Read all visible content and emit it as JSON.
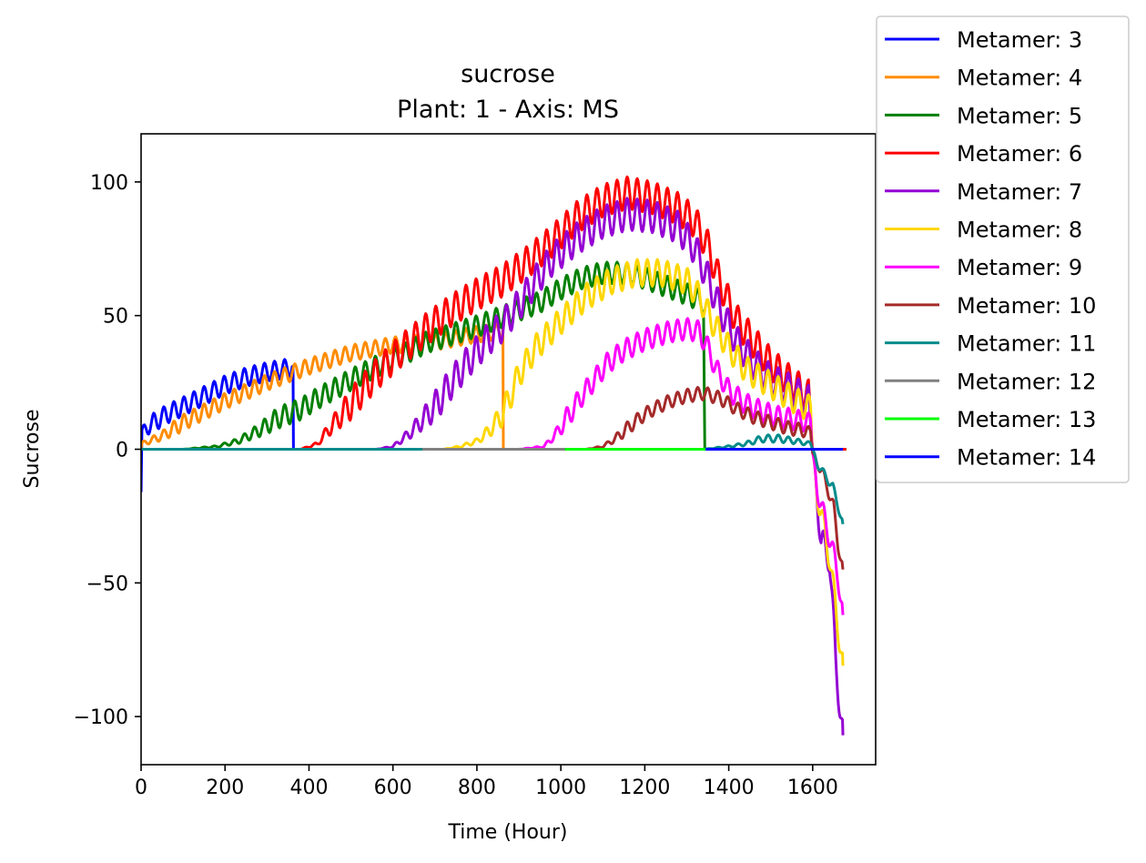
{
  "chart_data": {
    "type": "line",
    "title": "sucrose",
    "subtitle": "Plant: 1 - Axis: MS",
    "xlabel": "Time (Hour)",
    "ylabel": "Sucrose",
    "xlim": [
      0,
      1750
    ],
    "ylim": [
      -118,
      118
    ],
    "xticks": [
      0,
      200,
      400,
      600,
      800,
      1000,
      1200,
      1400,
      1600
    ],
    "yticks": [
      100,
      50,
      0,
      -50,
      -100
    ],
    "xtick_labels": [
      "0",
      "200",
      "400",
      "600",
      "800",
      "1000",
      "1200",
      "1400",
      "1600"
    ],
    "ytick_labels": [
      "100",
      "50",
      "0",
      "−50",
      "−100"
    ],
    "grid": false,
    "legend_placement": "outside-top-right",
    "series": [
      {
        "name": "Metamer: 3",
        "color": "#0000ff",
        "period": 24,
        "amp": 3.5,
        "points": [
          [
            0,
            -16
          ],
          [
            2,
            6
          ],
          [
            20,
            9
          ],
          [
            60,
            13
          ],
          [
            100,
            16
          ],
          [
            150,
            20
          ],
          [
            200,
            24
          ],
          [
            250,
            27
          ],
          [
            300,
            29
          ],
          [
            340,
            30
          ],
          [
            362,
            31
          ],
          [
            363,
            0
          ],
          [
            1680,
            0
          ]
        ]
      },
      {
        "name": "Metamer: 4",
        "color": "#ff8c00",
        "period": 24,
        "amp": 3,
        "points": [
          [
            0,
            0
          ],
          [
            2,
            2
          ],
          [
            50,
            5
          ],
          [
            100,
            10
          ],
          [
            200,
            18
          ],
          [
            300,
            25
          ],
          [
            400,
            31
          ],
          [
            500,
            36
          ],
          [
            600,
            39
          ],
          [
            700,
            40
          ],
          [
            800,
            43
          ],
          [
            850,
            44
          ],
          [
            862,
            45
          ],
          [
            863,
            0
          ],
          [
            1680,
            0
          ]
        ]
      },
      {
        "name": "Metamer: 5",
        "color": "#008000",
        "period": 24,
        "amp": 4,
        "points": [
          [
            0,
            0
          ],
          [
            100,
            0
          ],
          [
            180,
            1
          ],
          [
            230,
            3
          ],
          [
            280,
            7
          ],
          [
            330,
            12
          ],
          [
            380,
            15
          ],
          [
            420,
            19
          ],
          [
            500,
            26
          ],
          [
            560,
            31
          ],
          [
            620,
            35
          ],
          [
            680,
            40
          ],
          [
            740,
            43
          ],
          [
            800,
            46
          ],
          [
            850,
            49
          ],
          [
            900,
            52
          ],
          [
            950,
            55
          ],
          [
            1000,
            60
          ],
          [
            1050,
            64
          ],
          [
            1100,
            66
          ],
          [
            1150,
            66
          ],
          [
            1200,
            64
          ],
          [
            1250,
            61
          ],
          [
            1300,
            58
          ],
          [
            1340,
            55
          ],
          [
            1343,
            0
          ],
          [
            1680,
            0
          ]
        ]
      },
      {
        "name": "Metamer: 6",
        "color": "#ff0000",
        "period": 24,
        "amp": 6,
        "points": [
          [
            0,
            0
          ],
          [
            330,
            0
          ],
          [
            380,
            0
          ],
          [
            420,
            2
          ],
          [
            450,
            8
          ],
          [
            500,
            17
          ],
          [
            560,
            28
          ],
          [
            620,
            37
          ],
          [
            680,
            45
          ],
          [
            740,
            52
          ],
          [
            800,
            58
          ],
          [
            860,
            63
          ],
          [
            920,
            70
          ],
          [
            980,
            78
          ],
          [
            1040,
            87
          ],
          [
            1100,
            93
          ],
          [
            1160,
            96
          ],
          [
            1220,
            94
          ],
          [
            1280,
            90
          ],
          [
            1320,
            85
          ],
          [
            1350,
            76
          ],
          [
            1380,
            62
          ],
          [
            1420,
            48
          ],
          [
            1460,
            40
          ],
          [
            1500,
            32
          ],
          [
            1550,
            25
          ],
          [
            1590,
            20
          ],
          [
            1600,
            0
          ],
          [
            1680,
            0
          ]
        ]
      },
      {
        "name": "Metamer: 7",
        "color": "#9400d3",
        "period": 24,
        "amp": 6,
        "points": [
          [
            0,
            0
          ],
          [
            560,
            0
          ],
          [
            600,
            1
          ],
          [
            640,
            6
          ],
          [
            670,
            11
          ],
          [
            700,
            16
          ],
          [
            740,
            25
          ],
          [
            780,
            33
          ],
          [
            820,
            40
          ],
          [
            860,
            46
          ],
          [
            900,
            54
          ],
          [
            940,
            63
          ],
          [
            980,
            71
          ],
          [
            1040,
            79
          ],
          [
            1100,
            85
          ],
          [
            1160,
            88
          ],
          [
            1220,
            87
          ],
          [
            1280,
            83
          ],
          [
            1320,
            75
          ],
          [
            1350,
            64
          ],
          [
            1380,
            52
          ],
          [
            1420,
            40
          ],
          [
            1460,
            32
          ],
          [
            1500,
            26
          ],
          [
            1550,
            22
          ],
          [
            1590,
            18
          ],
          [
            1600,
            -2
          ],
          [
            1610,
            -15
          ],
          [
            1620,
            -35
          ],
          [
            1640,
            -40
          ],
          [
            1655,
            -80
          ],
          [
            1672,
            -107
          ]
        ]
      },
      {
        "name": "Metamer: 8",
        "color": "#ffd700",
        "period": 24,
        "amp": 5,
        "points": [
          [
            0,
            0
          ],
          [
            720,
            0
          ],
          [
            760,
            1
          ],
          [
            800,
            3
          ],
          [
            830,
            7
          ],
          [
            860,
            13
          ],
          [
            880,
            20
          ],
          [
            900,
            28
          ],
          [
            940,
            38
          ],
          [
            1000,
            48
          ],
          [
            1060,
            57
          ],
          [
            1120,
            63
          ],
          [
            1180,
            66
          ],
          [
            1240,
            66
          ],
          [
            1300,
            63
          ],
          [
            1330,
            57
          ],
          [
            1360,
            48
          ],
          [
            1400,
            38
          ],
          [
            1440,
            30
          ],
          [
            1480,
            26
          ],
          [
            1520,
            22
          ],
          [
            1560,
            18
          ],
          [
            1595,
            15
          ],
          [
            1600,
            -2
          ],
          [
            1610,
            -15
          ],
          [
            1625,
            -28
          ],
          [
            1640,
            -40
          ],
          [
            1655,
            -60
          ],
          [
            1672,
            -81
          ]
        ]
      },
      {
        "name": "Metamer: 9",
        "color": "#ff00ff",
        "period": 24,
        "amp": 4,
        "points": [
          [
            0,
            0
          ],
          [
            900,
            0
          ],
          [
            960,
            1
          ],
          [
            990,
            6
          ],
          [
            1020,
            13
          ],
          [
            1050,
            20
          ],
          [
            1080,
            26
          ],
          [
            1110,
            32
          ],
          [
            1150,
            37
          ],
          [
            1200,
            41
          ],
          [
            1260,
            44
          ],
          [
            1300,
            45
          ],
          [
            1330,
            44
          ],
          [
            1350,
            38
          ],
          [
            1370,
            30
          ],
          [
            1400,
            22
          ],
          [
            1440,
            17
          ],
          [
            1480,
            14
          ],
          [
            1520,
            12
          ],
          [
            1560,
            11
          ],
          [
            1595,
            10
          ],
          [
            1600,
            -2
          ],
          [
            1610,
            -14
          ],
          [
            1625,
            -24
          ],
          [
            1645,
            -36
          ],
          [
            1660,
            -47
          ],
          [
            1672,
            -62
          ]
        ]
      },
      {
        "name": "Metamer: 10",
        "color": "#a52a2a",
        "period": 24,
        "amp": 2.5,
        "points": [
          [
            0,
            0
          ],
          [
            1060,
            0
          ],
          [
            1100,
            1
          ],
          [
            1130,
            4
          ],
          [
            1160,
            8
          ],
          [
            1190,
            12
          ],
          [
            1220,
            15
          ],
          [
            1260,
            18
          ],
          [
            1300,
            20
          ],
          [
            1340,
            21
          ],
          [
            1380,
            19
          ],
          [
            1420,
            15
          ],
          [
            1460,
            12
          ],
          [
            1500,
            10
          ],
          [
            1540,
            8
          ],
          [
            1580,
            7
          ],
          [
            1595,
            6
          ],
          [
            1600,
            -2
          ],
          [
            1615,
            -6
          ],
          [
            1635,
            -14
          ],
          [
            1650,
            -22
          ],
          [
            1660,
            -35
          ],
          [
            1672,
            -45
          ]
        ]
      },
      {
        "name": "Metamer: 11",
        "color": "#008b8b",
        "period": 24,
        "amp": 1.5,
        "points": [
          [
            0,
            0
          ],
          [
            1340,
            0
          ],
          [
            1400,
            1
          ],
          [
            1440,
            2
          ],
          [
            1480,
            4
          ],
          [
            1520,
            4
          ],
          [
            1560,
            3
          ],
          [
            1595,
            2
          ],
          [
            1600,
            0
          ],
          [
            1610,
            -5
          ],
          [
            1630,
            -10
          ],
          [
            1648,
            -14
          ],
          [
            1660,
            -21
          ],
          [
            1672,
            -28
          ]
        ]
      },
      {
        "name": "Metamer: 12",
        "color": "#808080",
        "period": 0,
        "amp": 0,
        "points": [
          [
            670,
            0
          ],
          [
            1010,
            0
          ]
        ]
      },
      {
        "name": "Metamer: 13",
        "color": "#00ff00",
        "period": 0,
        "amp": 0,
        "points": [
          [
            1010,
            0
          ],
          [
            1345,
            0
          ]
        ]
      },
      {
        "name": "Metamer: 14",
        "color": "#0000ff",
        "period": 0,
        "amp": 0,
        "points": [
          [
            1345,
            0
          ],
          [
            1672,
            0
          ]
        ]
      }
    ]
  }
}
